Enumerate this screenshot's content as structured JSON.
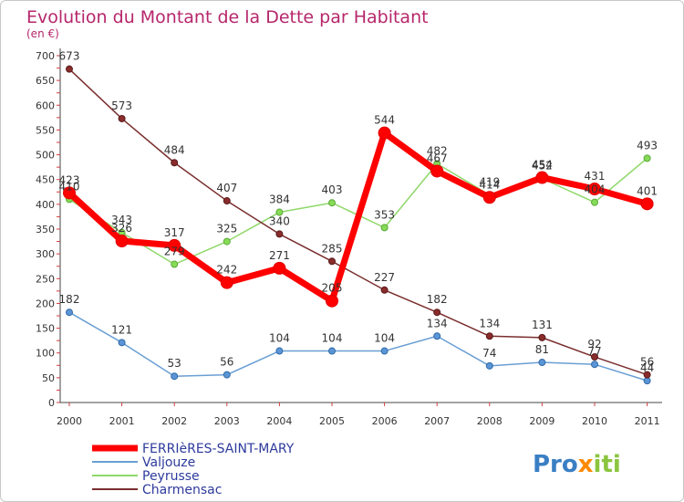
{
  "chart_data": {
    "type": "line",
    "title": "Evolution du Montant de la Dette par Habitant",
    "subtitle": "(en €)",
    "x": [
      "2000",
      "2001",
      "2002",
      "2003",
      "2004",
      "2005",
      "2006",
      "2007",
      "2008",
      "2009",
      "2010",
      "2011"
    ],
    "ylim": [
      0,
      700
    ],
    "yticks": [
      0,
      50,
      100,
      150,
      200,
      250,
      300,
      350,
      400,
      450,
      500,
      550,
      600,
      650,
      700
    ],
    "grid": false,
    "legend_position": "bottom-left",
    "series": [
      {
        "name": "FERRIèRES-SAINT-MARY",
        "color": "#ff0000",
        "values": [
          423,
          326,
          317,
          242,
          271,
          205,
          544,
          467,
          414,
          454,
          431,
          401
        ]
      },
      {
        "name": "Valjouze",
        "color": "#6a9fd4",
        "values": [
          182,
          121,
          53,
          56,
          104,
          104,
          104,
          134,
          74,
          81,
          77,
          44
        ]
      },
      {
        "name": "Peyrusse",
        "color": "#8fd86a",
        "values": [
          410,
          343,
          279,
          325,
          384,
          403,
          353,
          482,
          419,
          452,
          404,
          493
        ]
      },
      {
        "name": "Charmensac",
        "color": "#7a2e2e",
        "values": [
          673,
          573,
          484,
          407,
          340,
          285,
          227,
          182,
          134,
          131,
          92,
          56
        ]
      }
    ]
  },
  "logo": {
    "text": "Proxiti"
  }
}
